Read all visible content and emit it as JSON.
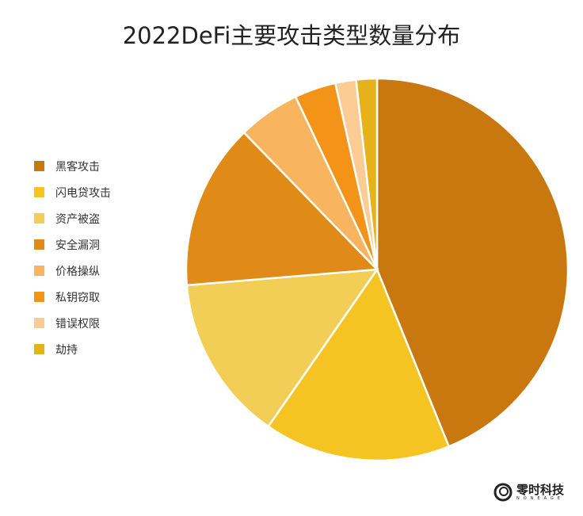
{
  "chart_data": {
    "type": "pie",
    "title": "2022DeFi主要攻击类型数量分布",
    "legend_position": "left",
    "start_angle": "12 o'clock, clockwise",
    "categories": [
      "黑客攻击",
      "闪电贷攻击",
      "资产被盗",
      "安全漏洞",
      "价格操纵",
      "私钥窃取",
      "错误权限",
      "劫持"
    ],
    "values": [
      25,
      9,
      8,
      8,
      3,
      2,
      1,
      1
    ],
    "colors": [
      "#C8780E",
      "#F5C423",
      "#F2CE57",
      "#E08B17",
      "#F8B45E",
      "#F39419",
      "#FBCC93",
      "#E5B21A"
    ]
  },
  "logo": {
    "name": "零时科技",
    "sub": "NONEAGE"
  }
}
